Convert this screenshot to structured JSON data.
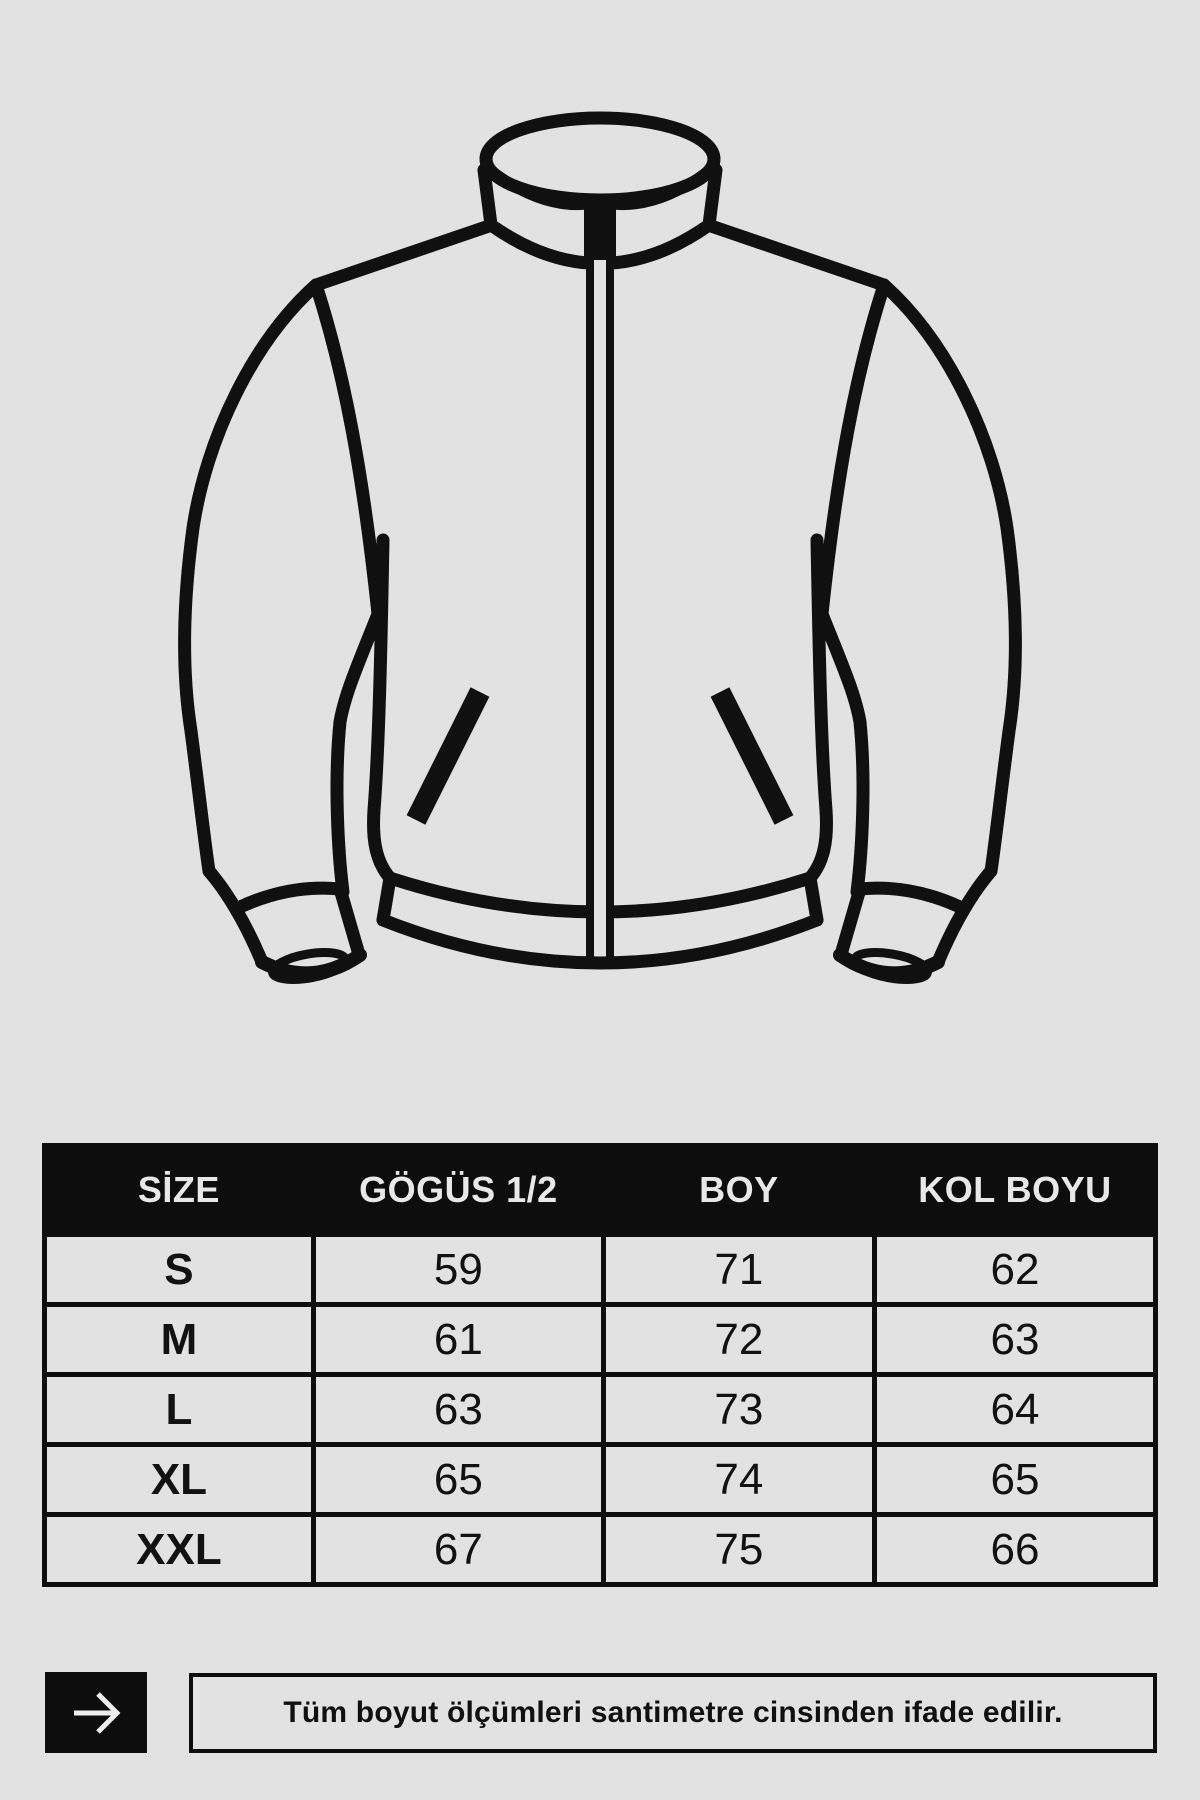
{
  "page": {
    "background_color": "#e2e2e2",
    "ink_color": "#0d0d0d",
    "header_text_color": "#e8e8e8"
  },
  "jacket_illustration": {
    "description": "black line drawing of a zip-up jacket with stand collar, full front zipper, two slanted pockets, ribbed hem and cuffs",
    "stroke_color": "#101010"
  },
  "size_table": {
    "headers": [
      "SİZE",
      "GÖGÜS 1/2",
      "BOY",
      "KOL BOYU"
    ],
    "rows": [
      [
        "S",
        "59",
        "71",
        "62"
      ],
      [
        "M",
        "61",
        "72",
        "63"
      ],
      [
        "L",
        "63",
        "73",
        "64"
      ],
      [
        "XL",
        "65",
        "74",
        "65"
      ],
      [
        "XXL",
        "67",
        "75",
        "66"
      ]
    ]
  },
  "footer": {
    "arrow_icon": "right-arrow",
    "note": "Tüm boyut ölçümleri santimetre cinsinden ifade edilir."
  }
}
